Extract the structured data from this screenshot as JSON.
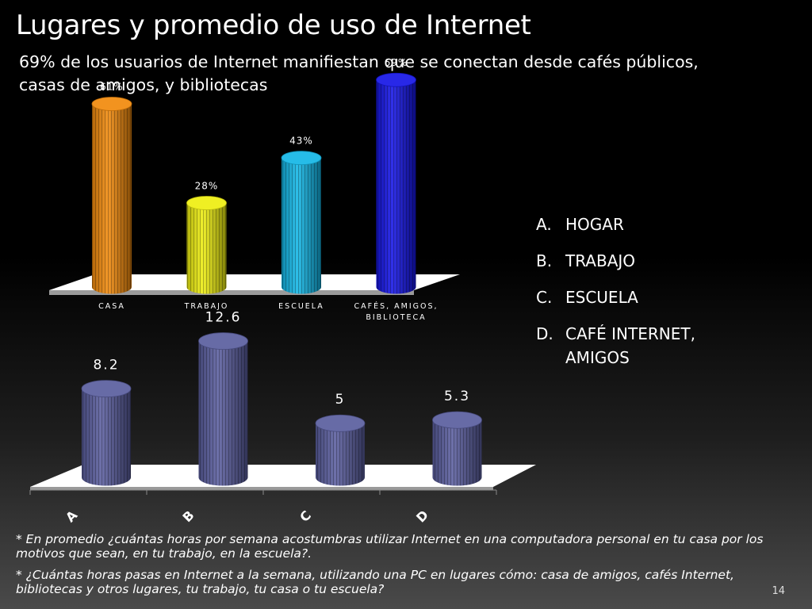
{
  "title": "Lugares y promedio de uso de Internet",
  "subtitle": "69% de los usuarios de Internet manifiestan que se conectan desde cafés públicos, casas de amigos, y bibliotecas",
  "chart_data": [
    {
      "type": "bar",
      "categories": [
        "CASA",
        "TRABAJO",
        "ESCUELA",
        "CAFÉS, AMIGOS, BIBLIOTECA"
      ],
      "values": [
        61,
        28,
        43,
        69
      ],
      "data_labels": [
        "61%",
        "28%",
        "43%",
        "69%"
      ],
      "colors": [
        "#f18a0c",
        "#eeee10",
        "#13b6e6",
        "#1515e6"
      ],
      "ylim": [
        0,
        75
      ],
      "grid": false
    },
    {
      "type": "bar",
      "categories": [
        "A",
        "B",
        "C",
        "D"
      ],
      "values": [
        8.2,
        12.6,
        5,
        5.3
      ],
      "data_labels": [
        "8.2",
        "12.6",
        "5",
        "5.3"
      ],
      "colors": [
        "#5a5e9e",
        "#5a5e9e",
        "#5a5e9e",
        "#5a5e9e"
      ],
      "ylim": [
        0,
        14
      ],
      "grid": false
    }
  ],
  "legend": [
    {
      "key": "A.",
      "text": "HOGAR"
    },
    {
      "key": "B.",
      "text": "TRABAJO"
    },
    {
      "key": "C.",
      "text": "ESCUELA"
    },
    {
      "key": "D.",
      "text": "CAFÉ INTERNET, AMIGOS"
    }
  ],
  "notes": [
    "* En promedio ¿cuántas horas por semana acostumbras utilizar Internet en una computadora personal  en tu casa por los motivos que sean, en tu trabajo, en la escuela?.",
    "* ¿Cuántas horas pasas en Internet a la semana, utilizando una PC en lugares cómo: casa de amigos, cafés Internet, bibliotecas y otros lugares, tu trabajo, tu casa o tu escuela?"
  ],
  "page_number": "14"
}
